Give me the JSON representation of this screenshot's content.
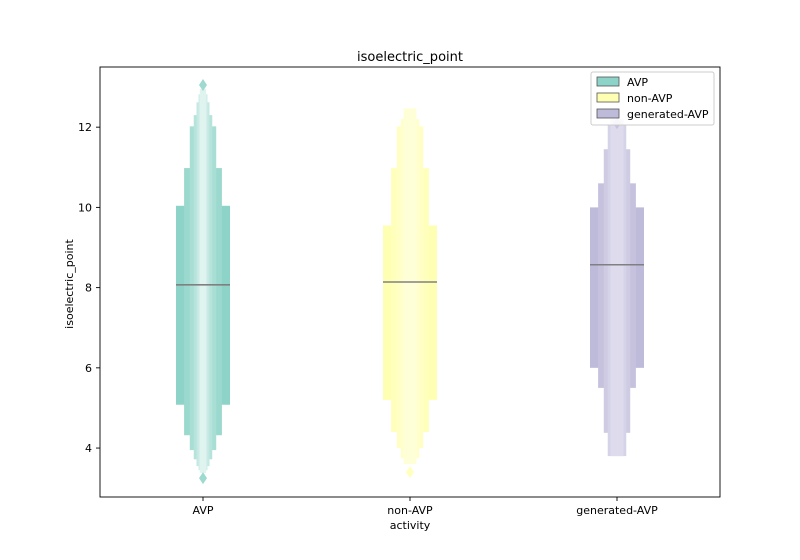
{
  "chart_data": {
    "type": "boxenplot",
    "title": "isoelectric_point",
    "xlabel": "activity",
    "ylabel": "isoelectric_point",
    "ylim": [
      2.78,
      13.5
    ],
    "yticks": [
      4,
      6,
      8,
      10,
      12
    ],
    "categories": [
      "AVP",
      "non-AVP",
      "generated-AVP"
    ],
    "legend": {
      "position": "top-right",
      "entries": [
        "AVP",
        "non-AVP",
        "generated-AVP"
      ]
    },
    "grid": false,
    "series": [
      {
        "name": "AVP",
        "color": "#8dd3c7",
        "median": 8.07,
        "boxes": [
          [
            5.08,
            10.04
          ],
          [
            4.32,
            10.98
          ],
          [
            3.95,
            12.02
          ],
          [
            3.72,
            12.3
          ],
          [
            3.55,
            12.62
          ],
          [
            3.45,
            12.82
          ],
          [
            3.38,
            12.95
          ]
        ],
        "outliers": [
          13.05,
          3.25
        ]
      },
      {
        "name": "non-AVP",
        "color": "#ffffb3",
        "median": 8.14,
        "boxes": [
          [
            5.2,
            9.55
          ],
          [
            4.4,
            10.98
          ],
          [
            4.0,
            12.02
          ],
          [
            3.75,
            12.2
          ],
          [
            3.6,
            12.47
          ]
        ],
        "outliers": [
          3.4
        ]
      },
      {
        "name": "generated-AVP",
        "color": "#bebada",
        "median": 8.57,
        "boxes": [
          [
            6.0,
            10.0
          ],
          [
            5.5,
            10.6
          ],
          [
            4.38,
            11.45
          ],
          [
            3.8,
            12.05
          ],
          [
            3.8,
            12.2
          ]
        ],
        "outliers": [
          12.1
        ]
      }
    ]
  }
}
